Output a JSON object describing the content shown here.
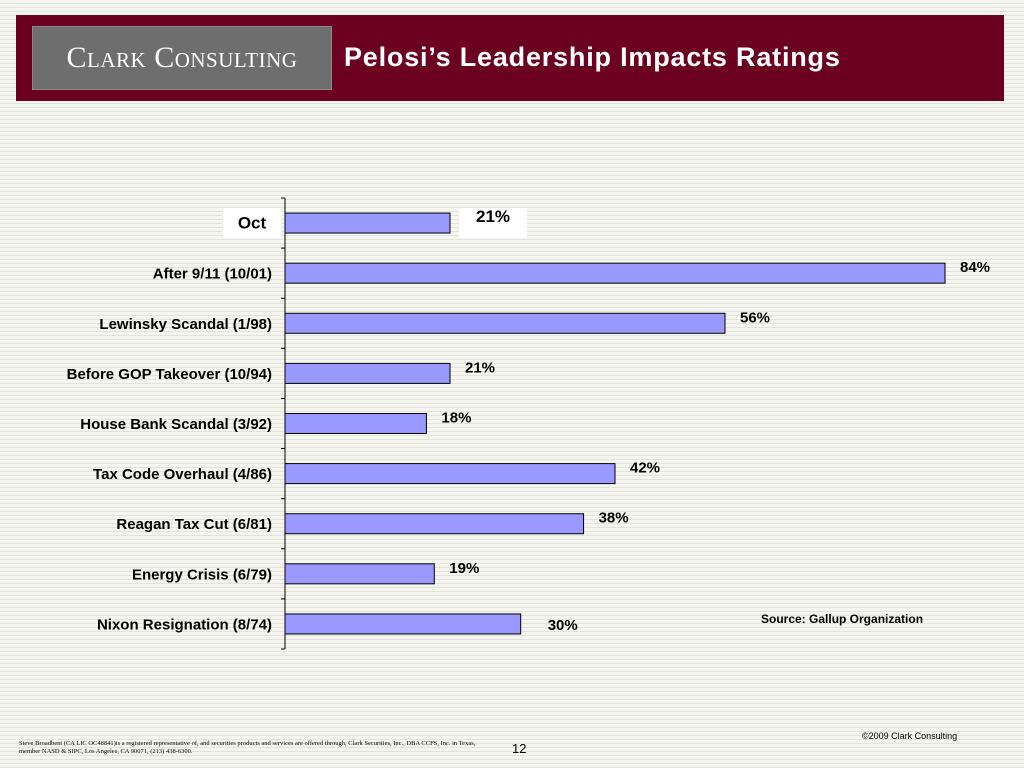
{
  "header": {
    "logo_text": "Clark Consulting",
    "title": "Pelosi’s Leadership Impacts Ratings"
  },
  "chart_data": {
    "type": "bar",
    "orientation": "horizontal",
    "categories": [
      "Oct",
      "After 9/11 (10/01)",
      "Lewinsky Scandal (1/98)",
      "Before GOP Takeover (10/94)",
      "House Bank Scandal (3/92)",
      "Tax Code Overhaul (4/86)",
      "Reagan Tax Cut (6/81)",
      "Energy Crisis (6/79)",
      "Nixon Resignation (8/74)"
    ],
    "values": [
      21,
      84,
      56,
      21,
      18,
      42,
      38,
      19,
      30
    ],
    "value_labels": [
      "21%",
      "84%",
      "56%",
      "21%",
      "18%",
      "42%",
      "38%",
      "19%",
      "30%"
    ],
    "highlighted_category": "Oct",
    "xlim": [
      0,
      84
    ],
    "bar_color": "#9999ff",
    "grid": false
  },
  "source": "Source: Gallup Organization",
  "footer": {
    "copyright": "©2009 Clark Consulting",
    "disclaimer": "Steve Broadbent (CA LIC OC48841)is a registered representative of, and securities products and services are offered through, Clark Securities, Inc., DBA CCFS, Inc. in Texas, member NASD & SIPC, Los Angeles, CA 90071, (213) 438-6300.",
    "page_number": "12"
  },
  "colors": {
    "header_bg": "#6b0020",
    "logo_bg": "#6e6e6e",
    "bar": "#9999ff"
  }
}
